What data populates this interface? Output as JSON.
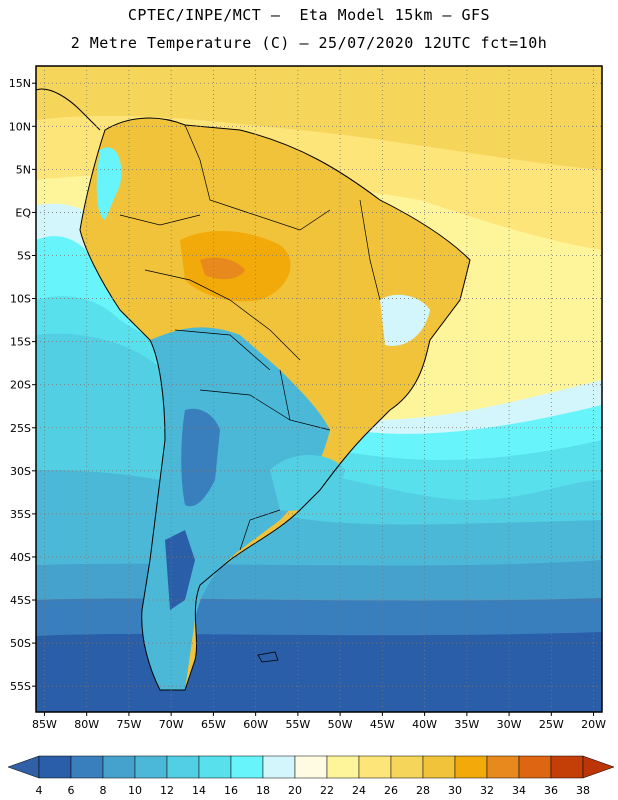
{
  "title": {
    "line1": "CPTEC/INPE/MCT –  Eta Model 15km – GFS",
    "line2": "2 Metre Temperature (C) – 25/07/2020 12UTC fct=10h"
  },
  "map": {
    "lat_labels": [
      "15N",
      "10N",
      "5N",
      "EQ",
      "5S",
      "10S",
      "15S",
      "20S",
      "25S",
      "30S",
      "35S",
      "40S",
      "45S",
      "50S",
      "55S"
    ],
    "lon_labels": [
      "85W",
      "80W",
      "75W",
      "70W",
      "65W",
      "60W",
      "55W",
      "50W",
      "45W",
      "40W",
      "35W",
      "30W",
      "25W",
      "20W"
    ],
    "lat_range": [
      17,
      -58
    ],
    "lon_range": [
      -86,
      -19
    ]
  },
  "colorbar": {
    "levels": [
      "4",
      "6",
      "8",
      "10",
      "12",
      "14",
      "16",
      "18",
      "20",
      "22",
      "24",
      "26",
      "28",
      "30",
      "32",
      "34",
      "36",
      "38"
    ],
    "colors": [
      "#2a5ea8",
      "#3a7fbd",
      "#45a2cd",
      "#4cb8d8",
      "#52cfe2",
      "#58e0ec",
      "#67f5fb",
      "#d2f6fb",
      "#fefbe2",
      "#fef59b",
      "#fde57a",
      "#f6d55b",
      "#f0c33b",
      "#f1aa09",
      "#e8891e",
      "#de6512",
      "#c43f08"
    ],
    "low_color": "#3160a6",
    "high_color": "#bc3507"
  }
}
